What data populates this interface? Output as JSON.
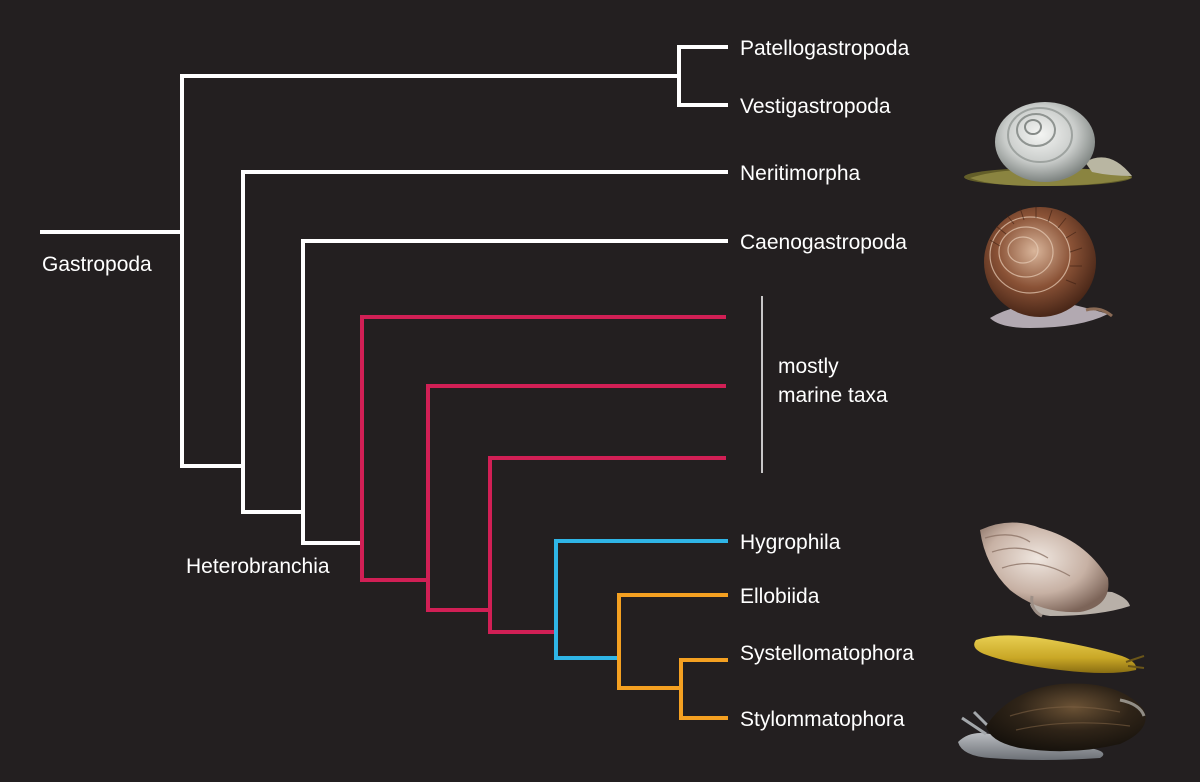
{
  "colors": {
    "background": "#231f20",
    "text": "#ffffff",
    "core": "#ffffff",
    "marine": "#d11f55",
    "hygrophila": "#2fb5e6",
    "eupulmonata": "#f4a021"
  },
  "root": {
    "label": "Gastropoda"
  },
  "heterobranchia": {
    "label": "Heterobranchia"
  },
  "taxa": {
    "patellogastropoda": "Patellogastropoda",
    "vestigastropoda": "Vestigastropoda",
    "neritimorpha": "Neritimorpha",
    "caenogastropoda": "Caenogastropoda",
    "hygrophila": "Hygrophila",
    "ellobiida": "Ellobiida",
    "systellomatophora": "Systellomatophora",
    "stylommatophora": "Stylommatophora"
  },
  "marine_group": {
    "line1": "mostly",
    "line2": "marine taxa"
  },
  "photos": [
    {
      "icon": "snail-shell-photo",
      "beside": "Neritimorpha"
    },
    {
      "icon": "snail-shell-photo",
      "beside": "Caenogastropoda"
    },
    {
      "icon": "snail-shell-photo",
      "beside": "Hygrophila"
    },
    {
      "icon": "slug-photo",
      "beside": "Systellomatophora"
    },
    {
      "icon": "snail-photo",
      "beside": "Stylommatophora"
    }
  ]
}
